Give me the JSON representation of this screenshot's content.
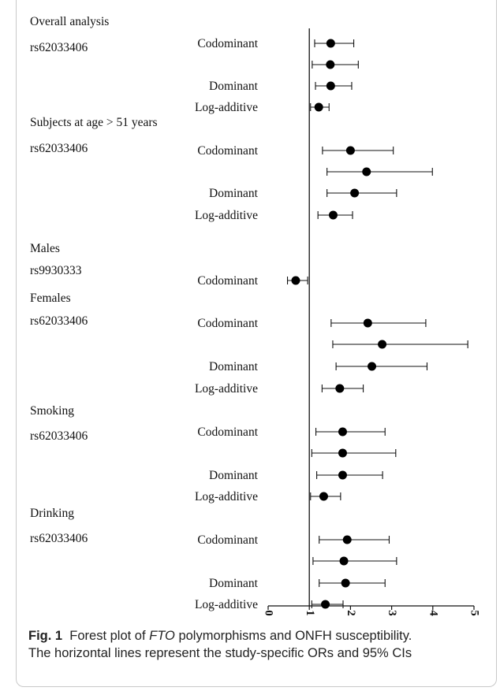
{
  "chart_data": {
    "type": "forest",
    "title": "",
    "xlabel": "",
    "ylabel": "",
    "xlim": [
      0,
      5
    ],
    "x_ticks": [
      "0",
      "1",
      "2",
      "3",
      "4",
      "5"
    ],
    "reference_line": 1,
    "groups": [
      {
        "heading": "Overall analysis",
        "snp": "rs62033406",
        "rows": [
          {
            "model": "Codominant",
            "or": 1.52,
            "lo": 1.13,
            "hi": 2.08
          },
          {
            "model": "",
            "or": 1.51,
            "lo": 1.07,
            "hi": 2.19
          },
          {
            "model": "Dominant",
            "or": 1.52,
            "lo": 1.15,
            "hi": 2.03
          },
          {
            "model": "Log-additive",
            "or": 1.23,
            "lo": 1.03,
            "hi": 1.48
          }
        ]
      },
      {
        "heading": "Subjects at age > 51 years",
        "snp": "rs62033406",
        "rows": [
          {
            "model": "Codominant",
            "or": 2.0,
            "lo": 1.32,
            "hi": 3.04
          },
          {
            "model": "",
            "or": 2.39,
            "lo": 1.43,
            "hi": 3.99
          },
          {
            "model": "Dominant",
            "or": 2.1,
            "lo": 1.43,
            "hi": 3.12
          },
          {
            "model": "Log-additive",
            "or": 1.58,
            "lo": 1.21,
            "hi": 2.05
          }
        ]
      },
      {
        "heading": "Males",
        "snp": "rs9930333",
        "rows": [
          {
            "model": "Codominant",
            "or": 0.67,
            "lo": 0.47,
            "hi": 0.96
          }
        ]
      },
      {
        "heading": "Females",
        "snp": "rs62033406",
        "rows": [
          {
            "model": "Codominant",
            "or": 2.42,
            "lo": 1.53,
            "hi": 3.83
          },
          {
            "model": "",
            "or": 2.77,
            "lo": 1.57,
            "hi": 4.85
          },
          {
            "model": "Dominant",
            "or": 2.52,
            "lo": 1.65,
            "hi": 3.86
          },
          {
            "model": "Log-additive",
            "or": 1.74,
            "lo": 1.31,
            "hi": 2.31
          }
        ]
      },
      {
        "heading": "Smoking",
        "snp": "rs62033406",
        "rows": [
          {
            "model": "Codominant",
            "or": 1.81,
            "lo": 1.16,
            "hi": 2.84
          },
          {
            "model": "",
            "or": 1.81,
            "lo": 1.06,
            "hi": 3.1
          },
          {
            "model": "Dominant",
            "or": 1.81,
            "lo": 1.18,
            "hi": 2.78
          },
          {
            "model": "Log-additive",
            "or": 1.35,
            "lo": 1.03,
            "hi": 1.76
          }
        ]
      },
      {
        "heading": "Drinking",
        "snp": "rs62033406",
        "rows": [
          {
            "model": "Codominant",
            "or": 1.92,
            "lo": 1.24,
            "hi": 2.94
          },
          {
            "model": "",
            "or": 1.84,
            "lo": 1.09,
            "hi": 3.12
          },
          {
            "model": "Dominant",
            "or": 1.88,
            "lo": 1.24,
            "hi": 2.84
          },
          {
            "model": "Log-additive",
            "or": 1.39,
            "lo": 1.06,
            "hi": 1.82
          }
        ]
      }
    ]
  },
  "caption": {
    "label": "Fig. 1",
    "pre": "Forest plot of ",
    "gene": "FTO",
    "post": " polymorphisms and ONFH susceptibility.",
    "line2": "The horizontal lines represent the study-specific ORs and 95% CIs"
  }
}
